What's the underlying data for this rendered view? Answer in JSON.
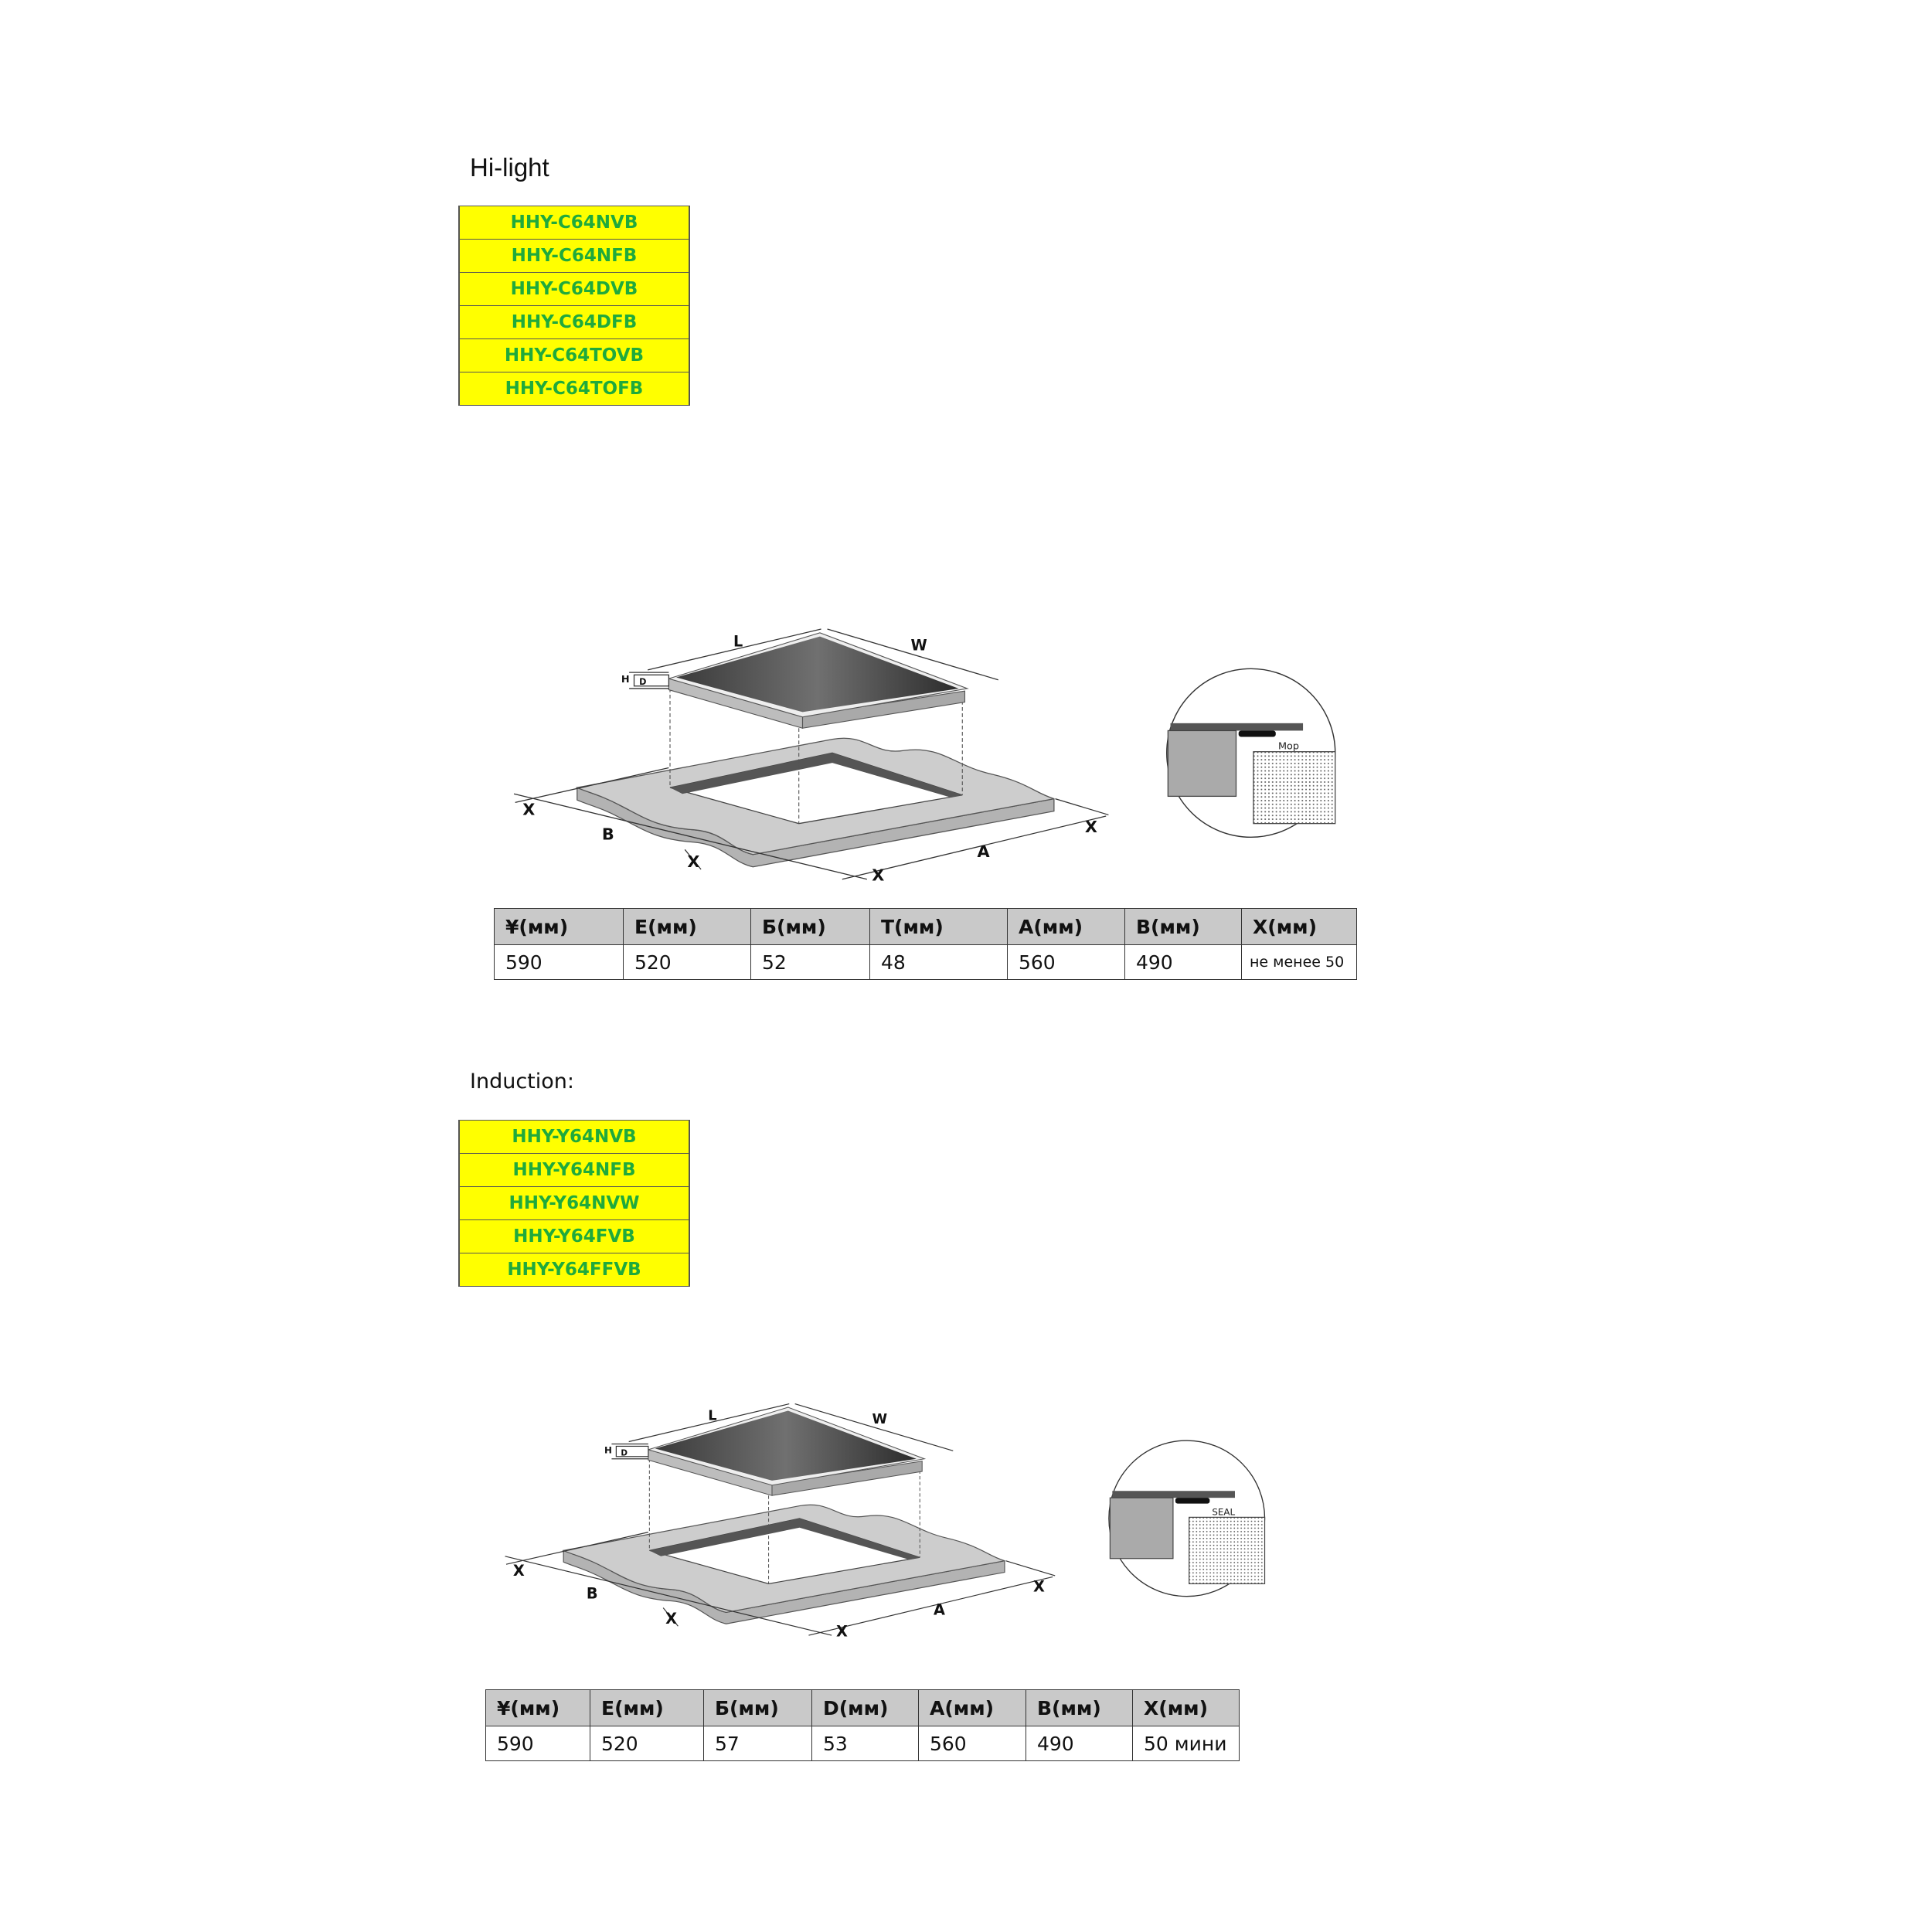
{
  "colors": {
    "model_bg": "#ffff00",
    "model_text": "#1faa3c",
    "header_bg": "#c9c9c9"
  },
  "hilight": {
    "title": "Hi-light",
    "models": [
      "HHY-C64NVB",
      "HHY-C64NFB",
      "HHY-C64DVB",
      "HHY-C64DFB",
      "HHY-C64TOVB",
      "HHY-C64TOFB"
    ],
    "diagram": {
      "L": "L",
      "W": "W",
      "H": "H",
      "D": "D",
      "X": "X",
      "B": "B",
      "A": "A",
      "inset_label": "Мор"
    },
    "table": {
      "headers": [
        "¥(мм)",
        "Е(мм)",
        "Б(мм)",
        "Т(мм)",
        "А(мм)",
        "В(мм)",
        "Х(мм)"
      ],
      "values": [
        "590",
        "520",
        "52",
        "48",
        "560",
        "490",
        "не менее 50"
      ]
    }
  },
  "induction": {
    "title": "Induction:",
    "models": [
      "HHY-Y64NVB",
      "HHY-Y64NFB",
      "HHY-Y64NVW",
      "HHY-Y64FVB",
      "HHY-Y64FFVB"
    ],
    "diagram": {
      "L": "L",
      "W": "W",
      "H": "H",
      "D": "D",
      "X": "X",
      "B": "B",
      "A": "A",
      "inset_label": "SEAL"
    },
    "table": {
      "headers": [
        "¥(мм)",
        "Е(мм)",
        "Б(мм)",
        "D(мм)",
        "А(мм)",
        "В(мм)",
        "Х(мм)"
      ],
      "values": [
        "590",
        "520",
        "57",
        "53",
        "560",
        "490",
        "50 мини"
      ]
    }
  }
}
